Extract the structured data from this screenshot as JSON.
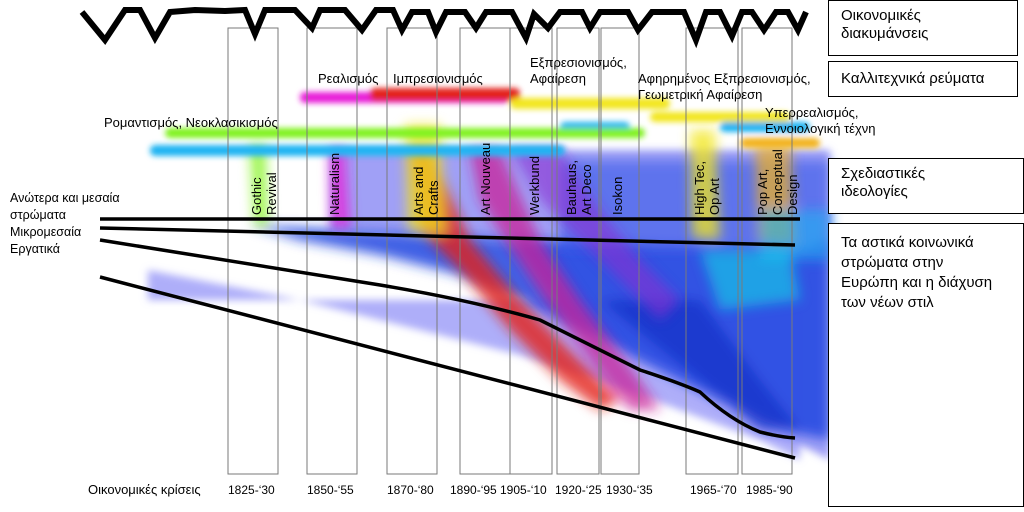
{
  "legend": {
    "economic_fluctuations": [
      "Οικονομικές",
      "διακυμάνσεις"
    ],
    "art_movements": "Καλλιτεχνικά ρεύματα",
    "design_ideologies": [
      "Σχεδιαστικές",
      "ιδεολογίες"
    ],
    "urban_strata": [
      "Τα αστικά κοινωνικά",
      "στρώματα στην",
      "Ευρώπη και η διάχυση",
      "των νέων στιλ"
    ]
  },
  "social_layers": {
    "upper": [
      "Ανώτερα και μεσαία",
      "στρώματα"
    ],
    "petty_bourgeois": "Μικρομεσαία",
    "working": "Εργατικά"
  },
  "art_labels": {
    "romanticism": "Ρομαντισμός, Νεοκλασικισμός",
    "realism": "Ρεαλισμός",
    "impressionism": "Ιμπρεσιονισμός",
    "expressionism": [
      "Εξπρεσιονισμός,",
      "Αφαίρεση"
    ],
    "abstract_expr": [
      "Αφηρημένος Εξπρεσιονισμός,",
      "Γεωμετρική Αφαίρεση"
    ],
    "surrealism": [
      "Υπερρεαλισμός,",
      "Εννοιολογική τέχνη"
    ]
  },
  "design_labels": {
    "gothic": [
      "Gothic",
      "Revival"
    ],
    "naturalism": "Naturalism",
    "arts_crafts": [
      "Arts and",
      "Crafts"
    ],
    "art_nouveau": "Art Nouveau",
    "werkbund": "Werkbund",
    "bauhaus": [
      "Bauhaus,",
      "Art Deco"
    ],
    "isokon": "Isokon",
    "hightec": [
      "High Tec,",
      "Op Art"
    ],
    "popart": [
      "Pop Art,",
      "Conceptual",
      "Design"
    ]
  },
  "crises_label": "Οικονομικές κρίσεις",
  "periods": [
    "1825-‘30",
    "1850-‘55",
    "1870-‘80",
    "1890-‘95",
    "1905-‘10",
    "1920-‘25",
    "1930-‘35",
    "1965-‘70",
    "1985-‘90"
  ],
  "colors": {
    "background_field": "#8c8cf2",
    "deep_blue": "#1f3fd8",
    "magenta": "#e81fd8",
    "red": "#e3231c",
    "yellow": "#f2e61a",
    "green": "#7ff21a",
    "cyan": "#1ab3f2",
    "orange": "#f2b21a"
  }
}
